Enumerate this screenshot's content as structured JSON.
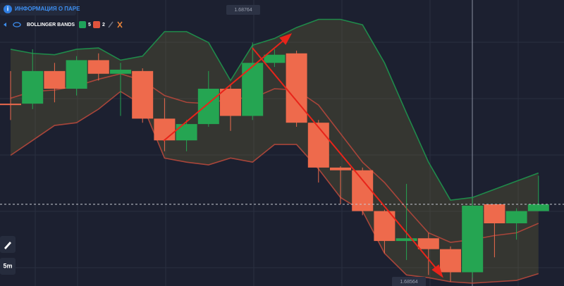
{
  "header": {
    "info": "ИНФОРМАЦИЯ О ПАРЕ"
  },
  "indicator": {
    "name": "BOLLINGER BANDS",
    "period": 5,
    "period_color": "#1fa35a",
    "deviation": 2,
    "deviation_color": "#e0533d"
  },
  "timeframe": "5m",
  "chart_data": {
    "type": "candlestick",
    "open": [
      1.68695,
      1.68695,
      1.68719,
      1.68706,
      1.68727,
      1.68717,
      1.68719,
      1.68684,
      1.68668,
      1.6868,
      1.68706,
      1.68686,
      1.68725,
      1.68732,
      1.68681,
      1.68648,
      1.68646,
      1.68616,
      1.68594,
      1.68596,
      1.68588,
      1.68571,
      1.68621,
      1.68607,
      1.68616
    ],
    "high": [
      1.68719,
      1.68735,
      1.68725,
      1.6873,
      1.68732,
      1.68725,
      1.68721,
      1.68699,
      1.68683,
      1.68719,
      1.68709,
      1.6874,
      1.68735,
      1.68734,
      1.68683,
      1.68649,
      1.68648,
      1.68617,
      1.68636,
      1.686,
      1.6859,
      1.68626,
      1.68621,
      1.68618,
      1.68642
    ],
    "low": [
      1.68683,
      1.68691,
      1.68696,
      1.68701,
      1.68712,
      1.68686,
      1.68681,
      1.6866,
      1.6866,
      1.68678,
      1.68675,
      1.68683,
      1.68722,
      1.68678,
      1.68637,
      1.68621,
      1.68613,
      1.68585,
      1.6858,
      1.68569,
      1.68564,
      1.68567,
      1.68582,
      1.68595,
      1.68616
    ],
    "close": [
      1.68694,
      1.68719,
      1.68706,
      1.68727,
      1.68717,
      1.6872,
      1.68684,
      1.68668,
      1.6868,
      1.68706,
      1.68686,
      1.68725,
      1.68731,
      1.68681,
      1.68648,
      1.68646,
      1.68616,
      1.68594,
      1.68596,
      1.68588,
      1.68571,
      1.6862,
      1.68607,
      1.68616,
      1.68621
    ],
    "up_color": "#25a552",
    "down_color": "#ee6a4c",
    "upper": {
      "color": "#1f8a4a",
      "values": [
        1.68735,
        1.68732,
        1.68731,
        1.68735,
        1.68736,
        1.68727,
        1.6873,
        1.68748,
        1.68748,
        1.6874,
        1.68712,
        1.68738,
        1.68743,
        1.68751,
        1.68757,
        1.68757,
        1.68753,
        1.68725,
        1.68688,
        1.68652,
        1.68624,
        1.68626,
        1.68632,
        1.68638,
        1.68644
      ]
    },
    "middle": {
      "color": "#a8453a",
      "values": [
        1.68699,
        1.68704,
        1.68705,
        1.68708,
        1.68713,
        1.68717,
        1.68712,
        1.68701,
        1.68696,
        1.68695,
        1.68699,
        1.68699,
        1.68706,
        1.68705,
        1.68694,
        1.68673,
        1.68652,
        1.68637,
        1.68618,
        1.686,
        1.68593,
        1.68595,
        1.68598,
        1.686,
        1.68607
      ]
    },
    "lower": {
      "color": "#a8453a",
      "values": [
        1.68657,
        1.68668,
        1.68679,
        1.68681,
        1.68691,
        1.68704,
        1.68694,
        1.68655,
        1.68652,
        1.6865,
        1.68655,
        1.68652,
        1.68665,
        1.68665,
        1.68647,
        1.68626,
        1.68616,
        1.68585,
        1.68569,
        1.68567,
        1.68564,
        1.68563,
        1.68564,
        1.68565,
        1.6857
      ]
    },
    "ylim": [
      1.68564,
      1.68764
    ],
    "yticks": [
      1.68564,
      1.68764
    ]
  }
}
